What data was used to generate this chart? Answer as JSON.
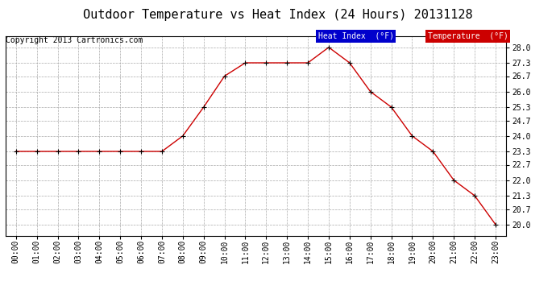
{
  "title": "Outdoor Temperature vs Heat Index (24 Hours) 20131128",
  "copyright": "Copyright 2013 Cartronics.com",
  "hours": [
    "00:00",
    "01:00",
    "02:00",
    "03:00",
    "04:00",
    "05:00",
    "06:00",
    "07:00",
    "08:00",
    "09:00",
    "10:00",
    "11:00",
    "12:00",
    "13:00",
    "14:00",
    "15:00",
    "16:00",
    "17:00",
    "18:00",
    "19:00",
    "20:00",
    "21:00",
    "22:00",
    "23:00"
  ],
  "temperature": [
    23.3,
    23.3,
    23.3,
    23.3,
    23.3,
    23.3,
    23.3,
    23.3,
    24.0,
    25.3,
    26.7,
    27.3,
    27.3,
    27.3,
    27.3,
    28.0,
    27.3,
    26.0,
    25.3,
    24.0,
    23.3,
    22.0,
    21.3,
    20.0
  ],
  "ylim": [
    19.5,
    28.5
  ],
  "yticks": [
    20.0,
    20.7,
    21.3,
    22.0,
    22.7,
    23.3,
    24.0,
    24.7,
    25.3,
    26.0,
    26.7,
    27.3,
    28.0
  ],
  "bg_color": "#ffffff",
  "line_color": "#cc0000",
  "marker_color": "#000000",
  "grid_color": "#aaaaaa",
  "legend_heat_bg": "#0000cc",
  "legend_temp_bg": "#cc0000",
  "legend_text_color": "#ffffff",
  "title_fontsize": 11,
  "copyright_fontsize": 7,
  "tick_fontsize": 7,
  "ytick_fontsize": 7
}
